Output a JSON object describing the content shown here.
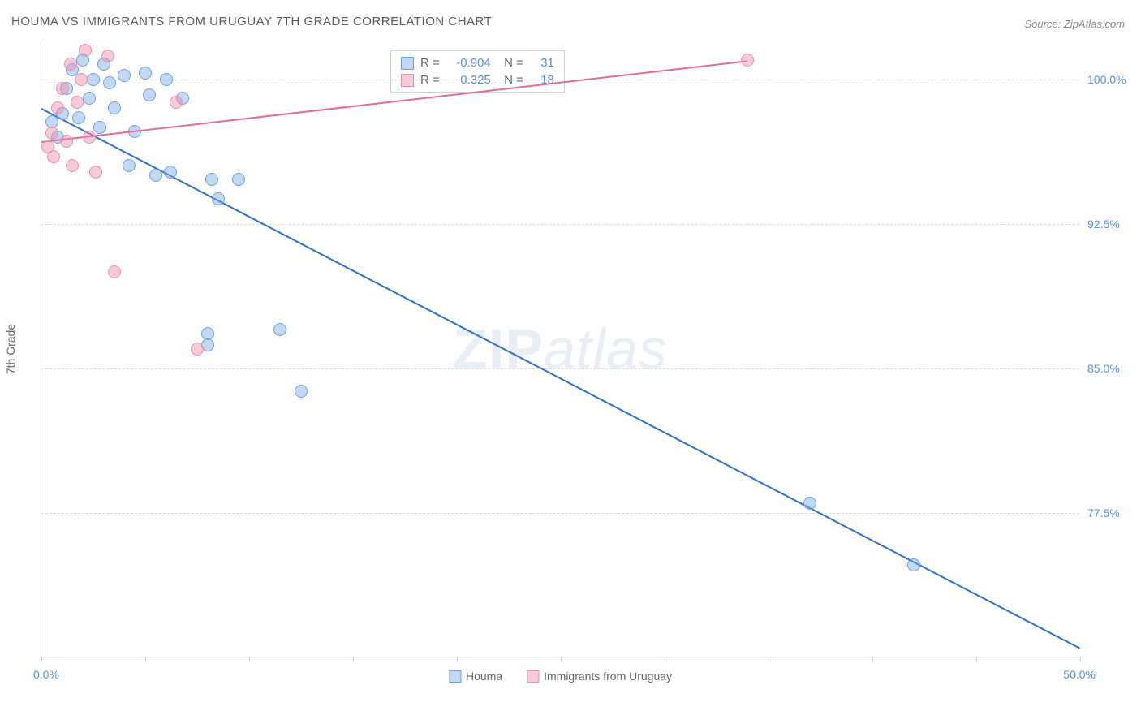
{
  "title": "HOUMA VS IMMIGRANTS FROM URUGUAY 7TH GRADE CORRELATION CHART",
  "source": "Source: ZipAtlas.com",
  "yaxis_title": "7th Grade",
  "watermark_bold": "ZIP",
  "watermark_rest": "atlas",
  "chart": {
    "type": "scatter-with-trend",
    "x_domain": [
      0,
      50
    ],
    "y_domain": [
      70,
      102
    ],
    "y_ticks": [
      77.5,
      85.0,
      92.5,
      100.0
    ],
    "y_tick_labels": [
      "77.5%",
      "85.0%",
      "92.5%",
      "100.0%"
    ],
    "x_ticks": [
      0,
      5,
      10,
      15,
      20,
      25,
      30,
      35,
      40,
      45,
      50
    ],
    "x_left_label": "0.0%",
    "x_right_label": "50.0%",
    "grid_color": "#d8d8d8",
    "background_color": "#ffffff",
    "point_radius": 8,
    "series": [
      {
        "name": "Houma",
        "fill": "rgba(120,170,230,0.45)",
        "stroke": "#6aa3e0",
        "trend_color": "#2d6fd0",
        "R": "-0.904",
        "N": "31",
        "trend": {
          "x1": 0,
          "y1": 98.5,
          "x2": 50,
          "y2": 70.5
        },
        "points": [
          {
            "x": 0.5,
            "y": 97.8
          },
          {
            "x": 0.8,
            "y": 97.0
          },
          {
            "x": 1.0,
            "y": 98.2
          },
          {
            "x": 1.2,
            "y": 99.5
          },
          {
            "x": 1.5,
            "y": 100.5
          },
          {
            "x": 1.8,
            "y": 98.0
          },
          {
            "x": 2.0,
            "y": 101.0
          },
          {
            "x": 2.3,
            "y": 99.0
          },
          {
            "x": 2.5,
            "y": 100.0
          },
          {
            "x": 2.8,
            "y": 97.5
          },
          {
            "x": 3.0,
            "y": 100.8
          },
          {
            "x": 3.3,
            "y": 99.8
          },
          {
            "x": 3.5,
            "y": 98.5
          },
          {
            "x": 4.0,
            "y": 100.2
          },
          {
            "x": 4.2,
            "y": 95.5
          },
          {
            "x": 4.5,
            "y": 97.3
          },
          {
            "x": 5.0,
            "y": 100.3
          },
          {
            "x": 5.2,
            "y": 99.2
          },
          {
            "x": 5.5,
            "y": 95.0
          },
          {
            "x": 6.0,
            "y": 100.0
          },
          {
            "x": 6.2,
            "y": 95.2
          },
          {
            "x": 6.8,
            "y": 99.0
          },
          {
            "x": 8.0,
            "y": 86.8
          },
          {
            "x": 8.2,
            "y": 94.8
          },
          {
            "x": 8.5,
            "y": 93.8
          },
          {
            "x": 9.5,
            "y": 94.8
          },
          {
            "x": 11.5,
            "y": 87.0
          },
          {
            "x": 12.5,
            "y": 83.8
          },
          {
            "x": 37.0,
            "y": 78.0
          },
          {
            "x": 42.0,
            "y": 74.8
          },
          {
            "x": 8.0,
            "y": 86.2
          }
        ]
      },
      {
        "name": "Immigrants from Uruguay",
        "fill": "rgba(240,140,170,0.45)",
        "stroke": "#e890ad",
        "trend_color": "#e56b93",
        "R": "0.325",
        "N": "18",
        "trend": {
          "x1": 0,
          "y1": 96.8,
          "x2": 34,
          "y2": 101.0
        },
        "points": [
          {
            "x": 0.3,
            "y": 96.5
          },
          {
            "x": 0.5,
            "y": 97.2
          },
          {
            "x": 0.6,
            "y": 96.0
          },
          {
            "x": 0.8,
            "y": 98.5
          },
          {
            "x": 1.0,
            "y": 99.5
          },
          {
            "x": 1.2,
            "y": 96.8
          },
          {
            "x": 1.4,
            "y": 100.8
          },
          {
            "x": 1.5,
            "y": 95.5
          },
          {
            "x": 1.7,
            "y": 98.8
          },
          {
            "x": 1.9,
            "y": 100.0
          },
          {
            "x": 2.1,
            "y": 101.5
          },
          {
            "x": 2.3,
            "y": 97.0
          },
          {
            "x": 2.6,
            "y": 95.2
          },
          {
            "x": 3.2,
            "y": 101.2
          },
          {
            "x": 3.5,
            "y": 90.0
          },
          {
            "x": 6.5,
            "y": 98.8
          },
          {
            "x": 7.5,
            "y": 86.0
          },
          {
            "x": 34.0,
            "y": 101.0
          }
        ]
      }
    ]
  },
  "bottom_legend": [
    {
      "label": "Houma",
      "fill": "rgba(120,170,230,0.45)",
      "stroke": "#6aa3e0"
    },
    {
      "label": "Immigrants from Uruguay",
      "fill": "rgba(240,140,170,0.45)",
      "stroke": "#e890ad"
    }
  ]
}
